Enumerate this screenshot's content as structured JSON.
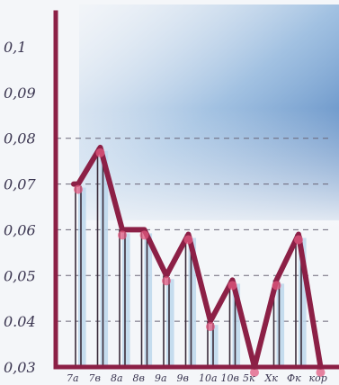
{
  "chart_data": {
    "type": "bar",
    "overlay": "line",
    "title": "",
    "xlabel": "",
    "ylabel": "",
    "ylim": [
      0.03,
      0.11
    ],
    "yticks": [
      {
        "value": 0.1,
        "label": "0,1"
      },
      {
        "value": 0.09,
        "label": "0,09"
      },
      {
        "value": 0.08,
        "label": "0,08"
      },
      {
        "value": 0.07,
        "label": "0,07"
      },
      {
        "value": 0.06,
        "label": "0,06"
      },
      {
        "value": 0.05,
        "label": "0,05"
      },
      {
        "value": 0.04,
        "label": "0.04"
      },
      {
        "value": 0.03,
        "label": "0,03"
      }
    ],
    "categories": [
      "7а",
      "7в",
      "8а",
      "8в",
      "9а",
      "9в",
      "10а",
      "10в",
      "5к",
      "Хк",
      "Фк",
      "кор"
    ],
    "values": [
      0.07,
      0.078,
      0.06,
      0.06,
      0.05,
      0.059,
      0.04,
      0.049,
      0.03,
      0.049,
      0.059,
      0.03
    ],
    "grid": "dashed at 0.08, 0.07, 0.06, 0.05, 0.04",
    "legend": "none",
    "colors": {
      "line": "#8c2046",
      "axis": "#8c2046",
      "bars": "#bcd7ec",
      "points": "#e15a80",
      "sky": "#2f6fb5"
    }
  }
}
